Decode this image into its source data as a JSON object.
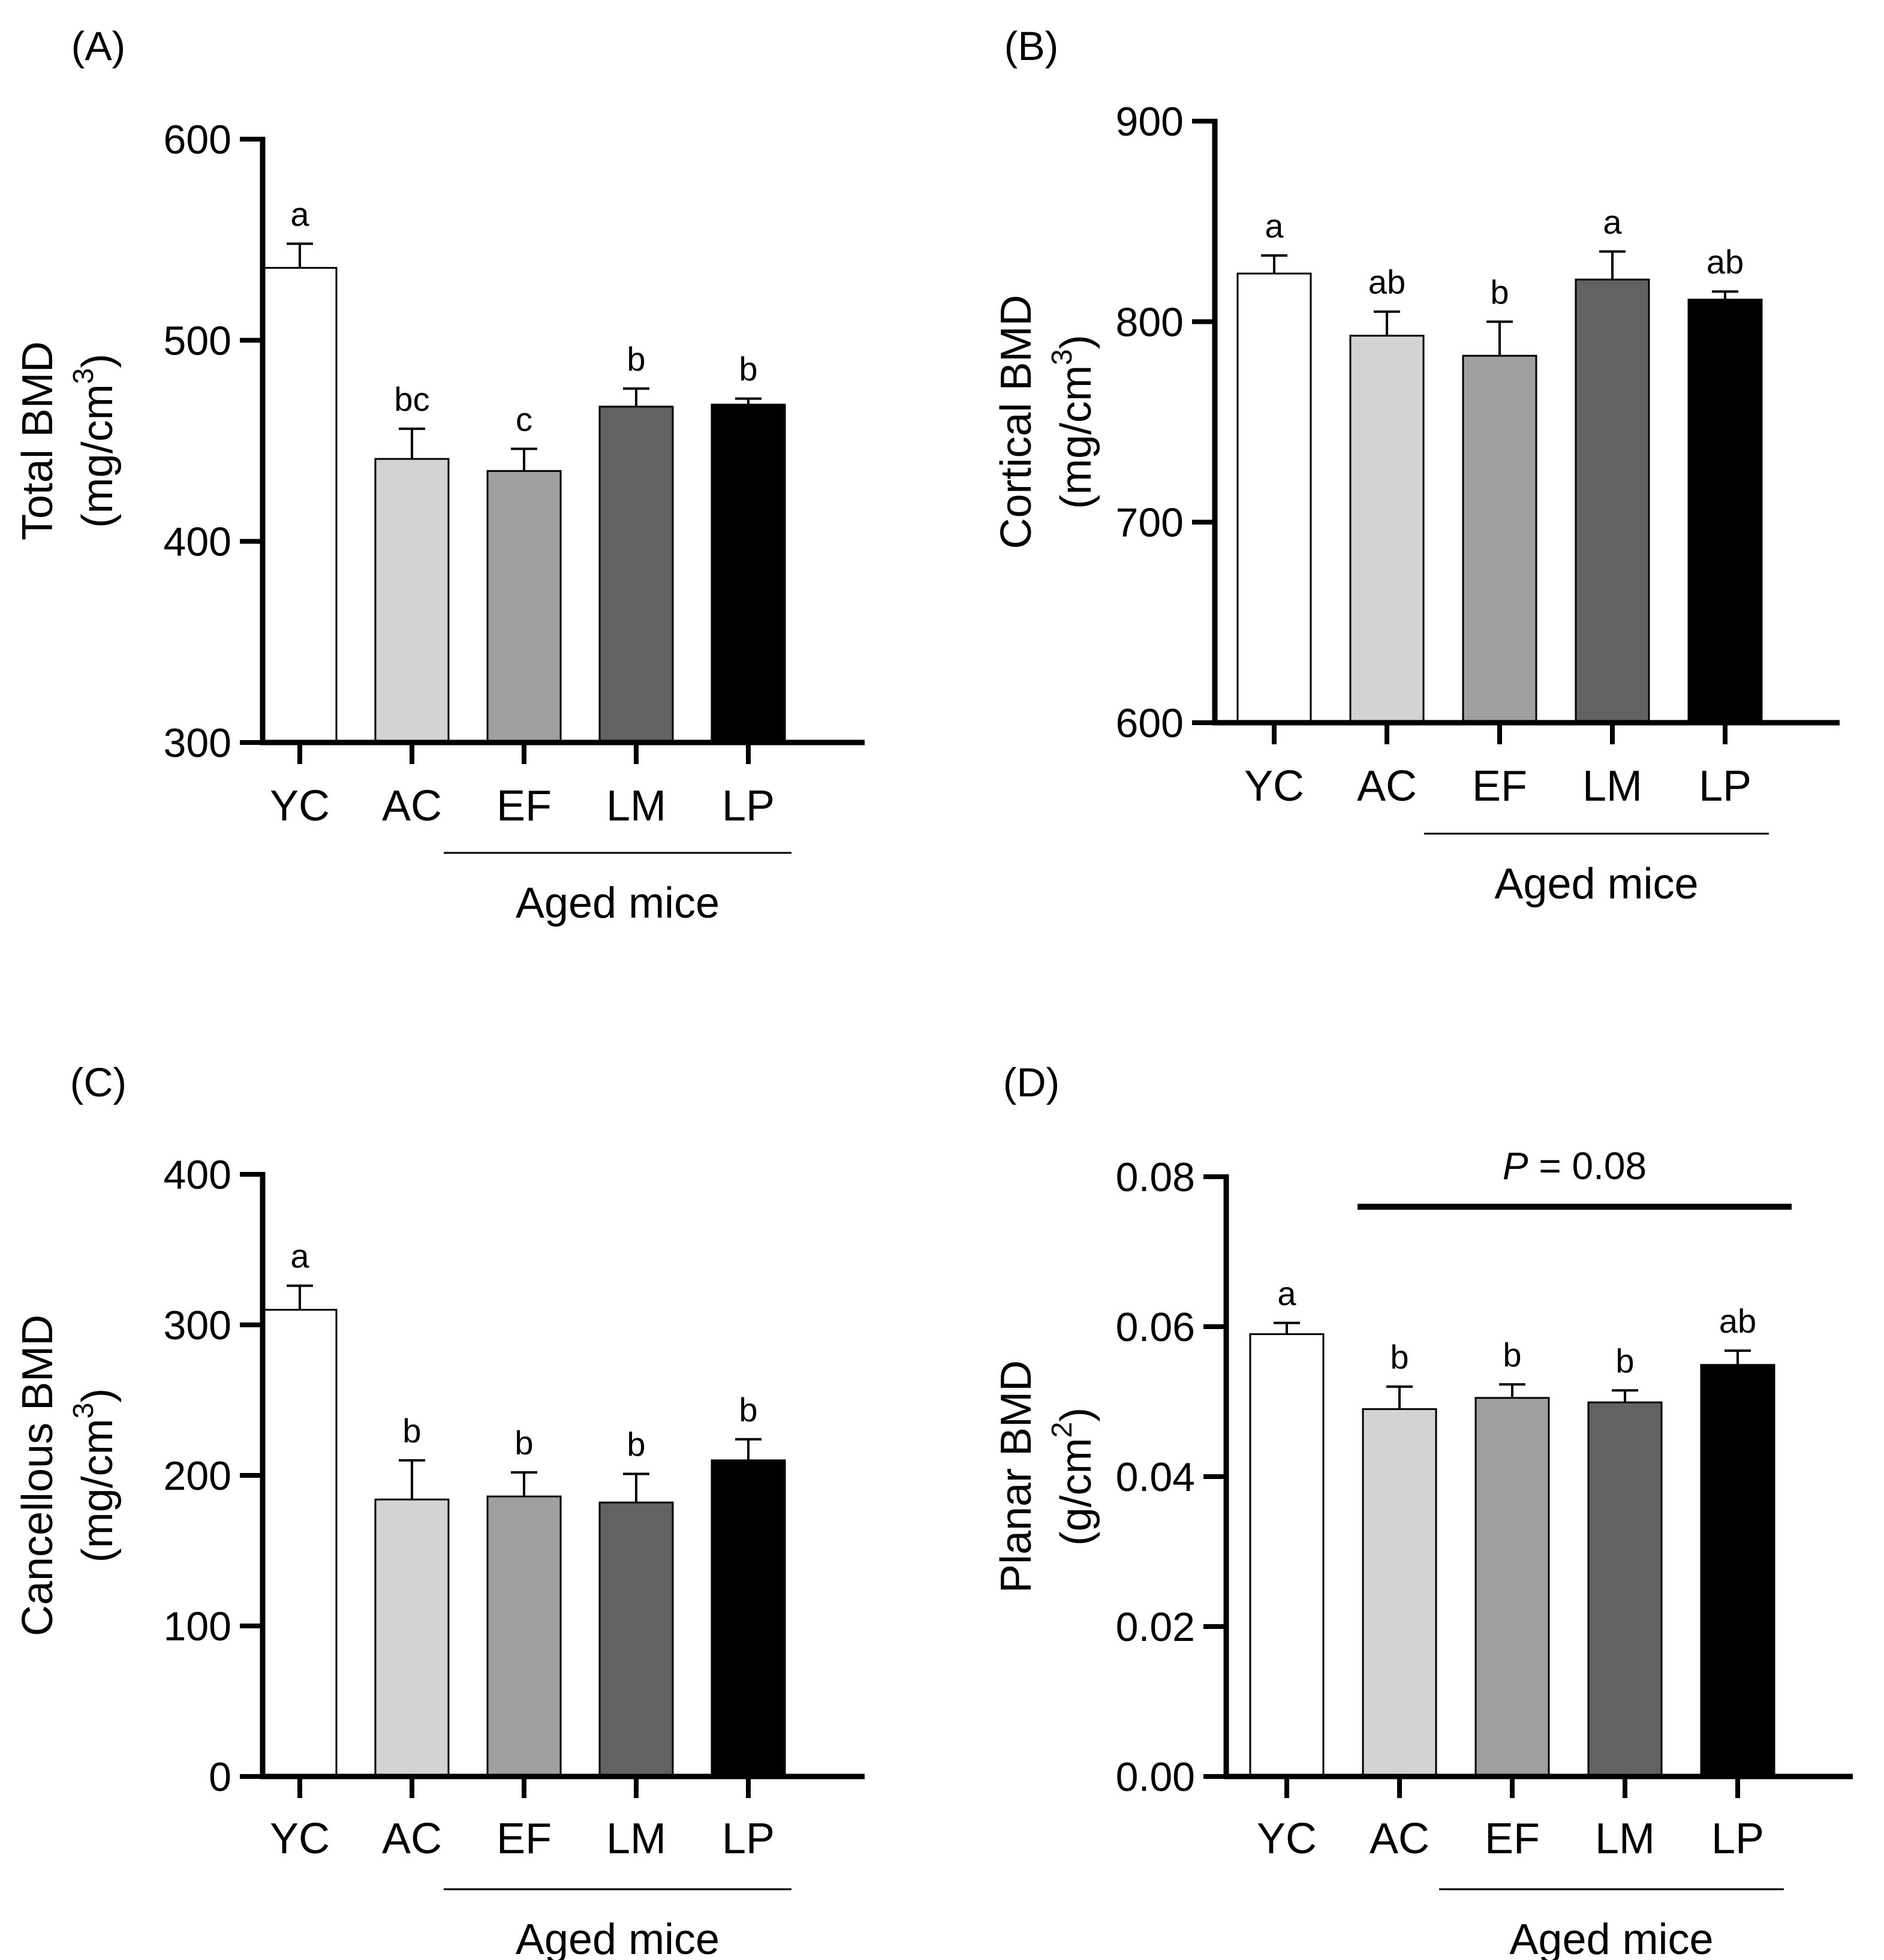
{
  "figure_name": "bmd-figure",
  "chart_data": [
    {
      "panel": "(A)",
      "type": "bar",
      "categories": [
        "YC",
        "AC",
        "EF",
        "LM",
        "LP"
      ],
      "values": [
        536,
        441,
        435,
        467,
        468
      ],
      "errors": [
        12,
        15,
        11,
        9,
        3
      ],
      "sig_letters": [
        "a",
        "bc",
        "c",
        "b",
        "b"
      ],
      "colors": [
        "#ffffff",
        "#d3d3d3",
        "#a0a0a0",
        "#626262",
        "#000000"
      ],
      "ylim": [
        300,
        600
      ],
      "yticks": [
        "300",
        "400",
        "500",
        "600"
      ],
      "ylabel_line1": "Total BMD",
      "ylabel_line2_pre": "(mg/cm",
      "ylabel_line2_sup": "3",
      "ylabel_line2_post": ")",
      "group_label": "Aged mice"
    },
    {
      "panel": "(B)",
      "type": "bar",
      "categories": [
        "YC",
        "AC",
        "EF",
        "LM",
        "LP"
      ],
      "values": [
        824,
        793,
        783,
        821,
        811
      ],
      "errors": [
        9,
        12,
        17,
        14,
        4
      ],
      "sig_letters": [
        "a",
        "ab",
        "b",
        "a",
        "ab"
      ],
      "colors": [
        "#ffffff",
        "#d3d3d3",
        "#a0a0a0",
        "#626262",
        "#000000"
      ],
      "ylim": [
        600,
        900
      ],
      "yticks": [
        "600",
        "700",
        "800",
        "900"
      ],
      "ylabel_line1": "Cortical BMD",
      "ylabel_line2_pre": "(mg/cm",
      "ylabel_line2_sup": "3",
      "ylabel_line2_post": ")",
      "group_label": "Aged mice"
    },
    {
      "panel": "(C)",
      "type": "bar",
      "categories": [
        "YC",
        "AC",
        "EF",
        "LM",
        "LP"
      ],
      "values": [
        310,
        184,
        186,
        182,
        210
      ],
      "errors": [
        16,
        26,
        16,
        19,
        14
      ],
      "sig_letters": [
        "a",
        "b",
        "b",
        "b",
        "b"
      ],
      "colors": [
        "#ffffff",
        "#d3d3d3",
        "#a0a0a0",
        "#626262",
        "#000000"
      ],
      "ylim": [
        0,
        400
      ],
      "yticks": [
        "0",
        "100",
        "200",
        "300",
        "400"
      ],
      "ylabel_line1": "Cancellous BMD",
      "ylabel_line2_pre": "(mg/cm",
      "ylabel_line2_sup": "3",
      "ylabel_line2_post": ")",
      "group_label": "Aged mice"
    },
    {
      "panel": "(D)",
      "type": "bar",
      "categories": [
        "YC",
        "AC",
        "EF",
        "LM",
        "LP"
      ],
      "values": [
        0.059,
        0.049,
        0.0505,
        0.0499,
        0.0549
      ],
      "errors": [
        0.0015,
        0.003,
        0.0018,
        0.0016,
        0.0019
      ],
      "sig_letters": [
        "a",
        "b",
        "b",
        "b",
        "ab"
      ],
      "colors": [
        "#ffffff",
        "#d3d3d3",
        "#a0a0a0",
        "#626262",
        "#000000"
      ],
      "ylim": [
        0,
        0.08
      ],
      "yticks": [
        "0.00",
        "0.02",
        "0.04",
        "0.06",
        "0.08"
      ],
      "ylabel_line1": "Planar BMD",
      "ylabel_line2_pre": "(g/cm",
      "ylabel_line2_sup": "2",
      "ylabel_line2_post": ")",
      "group_label": "Aged mice",
      "annotation_p": "P",
      "annotation_rest": " = 0.08"
    }
  ]
}
